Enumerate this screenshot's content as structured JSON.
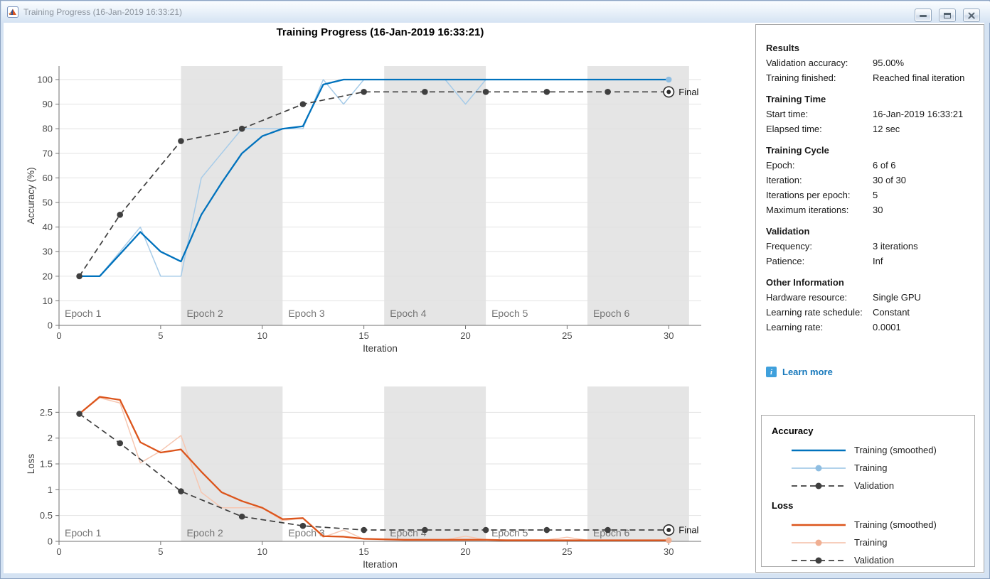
{
  "window": {
    "title": "Training Progress (16-Jan-2019 16:33:21)",
    "controls": {
      "minimize": "minimize",
      "maximize": "maximize",
      "close": "close"
    }
  },
  "figure": {
    "title": "Training Progress (16-Jan-2019 16:33:21)"
  },
  "chart_data": [
    {
      "type": "line",
      "name": "accuracy",
      "xlabel": "Iteration",
      "ylabel": "Accuracy (%)",
      "xlim": [
        0,
        31.6
      ],
      "ylim": [
        0,
        105.5
      ],
      "xticks": [
        0,
        5,
        10,
        15,
        20,
        25,
        30
      ],
      "yticks": [
        0,
        10,
        20,
        30,
        40,
        50,
        60,
        70,
        80,
        90,
        100
      ],
      "grid": "horizontal",
      "band_color": "#E5E5E5",
      "grid_color": "#E2E2E2",
      "epoch_bands": [
        [
          6,
          11
        ],
        [
          16,
          21
        ],
        [
          26,
          31
        ]
      ],
      "epoch_labels": [
        "Epoch 1",
        "Epoch 2",
        "Epoch 3",
        "Epoch 4",
        "Epoch 5",
        "Epoch 6"
      ],
      "epoch_label_x": [
        0,
        6,
        11,
        16,
        21,
        26
      ],
      "series": [
        {
          "name": "Training",
          "style": "raw",
          "color": "#A6CBE8",
          "dot_color": "#8FBEE2",
          "end_dot": true,
          "x": [
            1,
            2,
            3,
            4,
            5,
            6,
            7,
            8,
            9,
            10,
            11,
            12,
            13,
            14,
            15,
            16,
            17,
            18,
            19,
            20,
            21,
            22,
            23,
            24,
            25,
            26,
            27,
            28,
            29,
            30
          ],
          "y": [
            20,
            20,
            30,
            40,
            20,
            20,
            60,
            70,
            80,
            80,
            80,
            80,
            100,
            90,
            100,
            100,
            100,
            100,
            100,
            90,
            100,
            100,
            100,
            100,
            100,
            100,
            100,
            100,
            100,
            100
          ]
        },
        {
          "name": "Training (smoothed)",
          "style": "smoothed",
          "color": "#0072BD",
          "x": [
            1,
            2,
            3,
            4,
            5,
            6,
            7,
            8,
            9,
            10,
            11,
            12,
            13,
            14,
            15,
            16,
            17,
            18,
            19,
            20,
            21,
            22,
            23,
            24,
            25,
            26,
            27,
            28,
            29,
            30
          ],
          "y": [
            20,
            20,
            29,
            38,
            30,
            26,
            45,
            58,
            70,
            77,
            80,
            81,
            98,
            100,
            100,
            100,
            100,
            100,
            100,
            100,
            100,
            100,
            100,
            100,
            100,
            100,
            100,
            100,
            100,
            100
          ]
        },
        {
          "name": "Validation",
          "style": "validation",
          "color": "#3F3F3F",
          "x": [
            1,
            3,
            6,
            9,
            12,
            15,
            18,
            21,
            24,
            27,
            30
          ],
          "y": [
            20,
            45,
            75,
            80,
            90,
            95,
            95,
            95,
            95,
            95,
            95
          ]
        }
      ],
      "final_marker": {
        "x": 30,
        "y": 95,
        "label": "Final"
      }
    },
    {
      "type": "line",
      "name": "loss",
      "xlabel": "Iteration",
      "ylabel": "Loss",
      "xlim": [
        0,
        31.6
      ],
      "ylim": [
        0,
        3.0
      ],
      "xticks": [
        0,
        5,
        10,
        15,
        20,
        25,
        30
      ],
      "yticks": [
        0,
        0.5,
        1,
        1.5,
        2,
        2.5
      ],
      "grid": "horizontal",
      "band_color": "#E5E5E5",
      "grid_color": "#E2E2E2",
      "epoch_bands": [
        [
          6,
          11
        ],
        [
          16,
          21
        ],
        [
          26,
          31
        ]
      ],
      "epoch_labels": [
        "Epoch 1",
        "Epoch 2",
        "Epoch 3",
        "Epoch 4",
        "Epoch 5",
        "Epoch 6"
      ],
      "epoch_label_x": [
        0,
        6,
        11,
        16,
        21,
        26
      ],
      "series": [
        {
          "name": "Training",
          "style": "raw",
          "color": "#F6C7B2",
          "dot_color": "#F0AF92",
          "end_dot": true,
          "x": [
            1,
            2,
            3,
            4,
            5,
            6,
            7,
            8,
            9,
            10,
            11,
            12,
            13,
            14,
            15,
            16,
            17,
            18,
            19,
            20,
            21,
            22,
            23,
            24,
            25,
            26,
            27,
            28,
            29,
            30
          ],
          "y": [
            2.47,
            2.78,
            2.68,
            1.52,
            1.75,
            2.05,
            0.95,
            0.65,
            0.65,
            0.65,
            0.4,
            0.45,
            0.08,
            0.22,
            0.04,
            0.03,
            0.03,
            0.03,
            0.03,
            0.1,
            0.03,
            0.03,
            0.03,
            0.03,
            0.08,
            0.02,
            0.02,
            0.02,
            0.02,
            0.02
          ]
        },
        {
          "name": "Training (smoothed)",
          "style": "smoothed",
          "color": "#DC551C",
          "x": [
            1,
            2,
            3,
            4,
            5,
            6,
            7,
            8,
            9,
            10,
            11,
            12,
            13,
            14,
            15,
            16,
            17,
            18,
            19,
            20,
            21,
            22,
            23,
            24,
            25,
            26,
            27,
            28,
            29,
            30
          ],
          "y": [
            2.47,
            2.8,
            2.74,
            1.92,
            1.72,
            1.78,
            1.35,
            0.95,
            0.78,
            0.65,
            0.43,
            0.45,
            0.1,
            0.09,
            0.05,
            0.04,
            0.03,
            0.03,
            0.03,
            0.03,
            0.03,
            0.02,
            0.02,
            0.02,
            0.02,
            0.02,
            0.02,
            0.02,
            0.02,
            0.02
          ]
        },
        {
          "name": "Validation",
          "style": "validation",
          "color": "#3F3F3F",
          "x": [
            1,
            3,
            6,
            9,
            12,
            15,
            18,
            21,
            24,
            27,
            30
          ],
          "y": [
            2.47,
            1.9,
            0.97,
            0.48,
            0.3,
            0.22,
            0.22,
            0.22,
            0.22,
            0.22,
            0.22
          ]
        }
      ],
      "final_marker": {
        "x": 30,
        "y": 0.22,
        "label": "Final"
      }
    }
  ],
  "panel": {
    "sections": [
      {
        "heading": "Results",
        "rows": [
          {
            "label": "Validation accuracy:",
            "value": "95.00%"
          },
          {
            "label": "Training finished:",
            "value": "Reached final iteration"
          }
        ]
      },
      {
        "heading": "Training Time",
        "rows": [
          {
            "label": "Start time:",
            "value": "16-Jan-2019 16:33:21"
          },
          {
            "label": "Elapsed time:",
            "value": "12 sec"
          }
        ]
      },
      {
        "heading": "Training Cycle",
        "rows": [
          {
            "label": "Epoch:",
            "value": "6 of 6"
          },
          {
            "label": "Iteration:",
            "value": "30 of 30"
          },
          {
            "label": "Iterations per epoch:",
            "value": "5"
          },
          {
            "label": "Maximum iterations:",
            "value": "30"
          }
        ]
      },
      {
        "heading": "Validation",
        "rows": [
          {
            "label": "Frequency:",
            "value": "3 iterations"
          },
          {
            "label": "Patience:",
            "value": "Inf"
          }
        ]
      },
      {
        "heading": "Other Information",
        "rows": [
          {
            "label": "Hardware resource:",
            "value": "Single GPU"
          },
          {
            "label": "Learning rate schedule:",
            "value": "Constant"
          },
          {
            "label": "Learning rate:",
            "value": "0.0001"
          }
        ]
      }
    ],
    "learn_more": "Learn more",
    "info_icon_glyph": "i"
  },
  "legend": {
    "groups": [
      {
        "title": "Accuracy",
        "items": [
          {
            "label": "Training (smoothed)",
            "style": "smoothed",
            "color": "#0072BD"
          },
          {
            "label": "Training",
            "style": "raw",
            "color": "#A6CBE8",
            "dot_color": "#8FBEE2"
          },
          {
            "label": "Validation",
            "style": "validation",
            "color": "#3F3F3F"
          }
        ]
      },
      {
        "title": "Loss",
        "items": [
          {
            "label": "Training (smoothed)",
            "style": "smoothed",
            "color": "#DC551C"
          },
          {
            "label": "Training",
            "style": "raw",
            "color": "#F6C7B2",
            "dot_color": "#F0AF92"
          },
          {
            "label": "Validation",
            "style": "validation",
            "color": "#3F3F3F"
          }
        ]
      }
    ]
  },
  "colors": {
    "accent_blue": "#0072BD",
    "accent_orange": "#DC551C",
    "validation_gray": "#3F3F3F",
    "epoch_band": "#E5E5E5",
    "frame_blue": "#D5E3F3"
  }
}
